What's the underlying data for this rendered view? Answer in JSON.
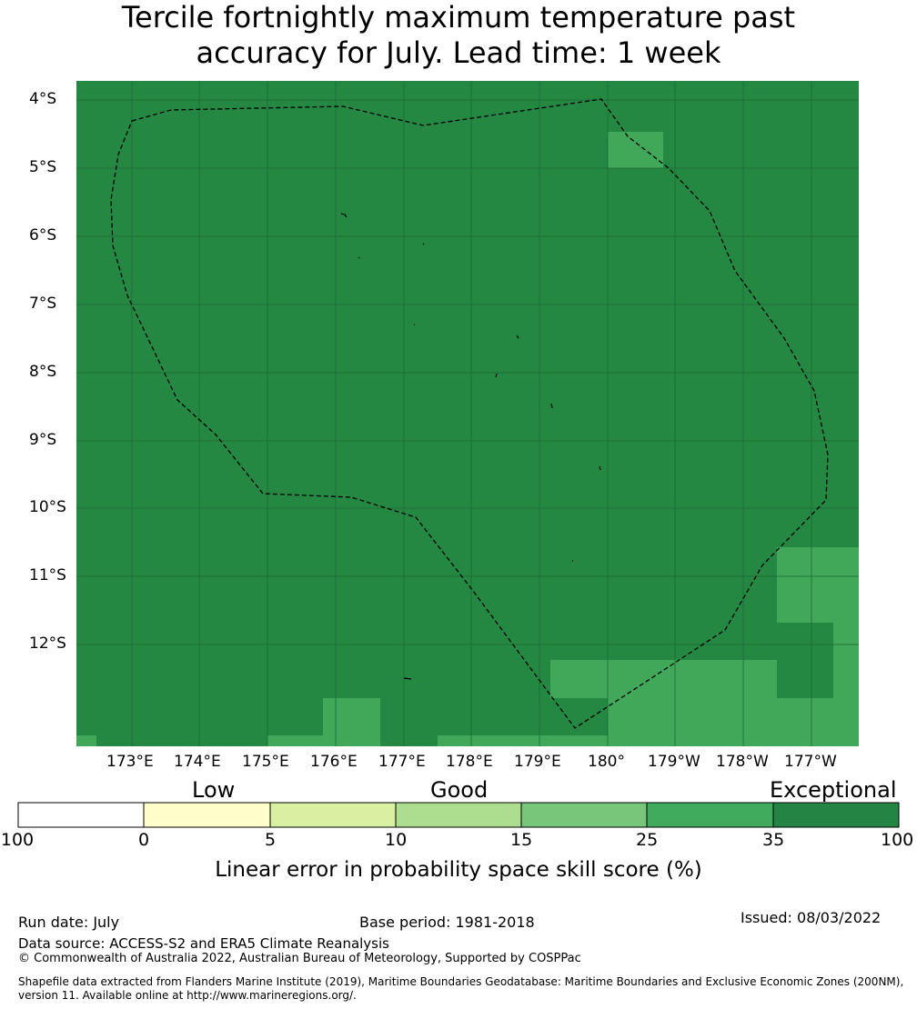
{
  "title": {
    "line1": "Tercile fortnightly maximum temperature past",
    "line2": "accuracy for July. Lead time: 1 week"
  },
  "map": {
    "latitude_labels": [
      "4°S",
      "5°S",
      "6°S",
      "7°S",
      "8°S",
      "9°S",
      "10°S",
      "11°S",
      "12°S"
    ],
    "longitude_labels": [
      "173°E",
      "174°E",
      "175°E",
      "176°E",
      "177°E",
      "178°E",
      "179°E",
      "180°",
      "179°W",
      "178°W",
      "177°W"
    ],
    "colors": {
      "exceptional_dark": "#248742",
      "exceptional_light": "#41a85a",
      "gridline": "#1a6a34",
      "boundary": "#000000"
    }
  },
  "colorbar": {
    "categories": [
      "Low",
      "Good",
      "Exceptional"
    ],
    "ticks": [
      "-100",
      "0",
      "5",
      "10",
      "15",
      "25",
      "35",
      "100"
    ],
    "segment_colors": [
      "#ffffff",
      "#ffffcc",
      "#d9f0a3",
      "#addd8e",
      "#78c679",
      "#41ab5d",
      "#238443"
    ],
    "label": "Linear error in probability space skill score (%)"
  },
  "footer": {
    "run_date": "Run date: July",
    "base_period": "Base period: 1981-2018",
    "issued": "Issued: 08/03/2022",
    "data_source": "Data source: ACCESS-S2 and ERA5 Climate Reanalysis",
    "copyright": "© Commonwealth of Australia 2022, Australian Bureau of Meteorology, Supported by COSPPac",
    "shapefile_line1": "Shapefile data extracted from Flanders Marine Institute (2019), Maritime Boundaries Geodatabase: Maritime Boundaries and Exclusive Economic Zones (200NM),",
    "shapefile_line2": "version 11. Available online at http://www.marineregions.org/."
  }
}
